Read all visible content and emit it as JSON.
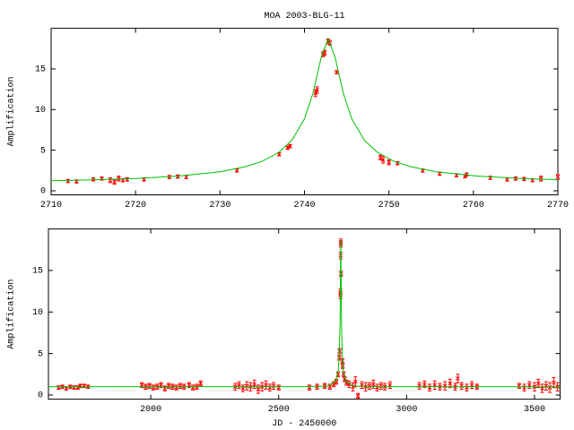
{
  "chart_data": [
    {
      "type": "scatter",
      "title": "MOA 2003-BLG-11",
      "y_label": "Amplification",
      "xlim": [
        2710,
        2770
      ],
      "ylim": [
        -0.5,
        20
      ],
      "xticks": [
        2710,
        2720,
        2730,
        2740,
        2750,
        2760,
        2770
      ],
      "yticks": [
        0,
        5,
        10,
        15
      ],
      "model": {
        "color": "#00c000",
        "x": [
          2710,
          2715,
          2720,
          2725,
          2730,
          2733,
          2735,
          2737,
          2738.5,
          2740,
          2741,
          2742,
          2742.8,
          2743.6,
          2744.6,
          2745.6,
          2747.1,
          2748.6,
          2750.6,
          2752.6,
          2755.6,
          2760.6,
          2765.6,
          2770
        ],
        "values": [
          1.24,
          1.35,
          1.51,
          1.8,
          2.34,
          2.96,
          3.63,
          4.75,
          6.21,
          8.86,
          11.99,
          16.52,
          18.71,
          16.52,
          11.99,
          8.86,
          6.21,
          4.75,
          3.63,
          2.96,
          2.34,
          1.8,
          1.51,
          1.36
        ]
      },
      "points": {
        "color": "#ff0000",
        "x": [
          2712,
          2713,
          2715,
          2716,
          2717,
          2717.5,
          2718,
          2718.5,
          2719,
          2721,
          2724,
          2725,
          2726,
          2732,
          2737,
          2738,
          2738.3,
          2741.3,
          2741.5,
          2742.2,
          2742.4,
          2742.8,
          2743,
          2743.8,
          2749,
          2749.3,
          2750,
          2751,
          2754,
          2756,
          2758,
          2759,
          2759.2,
          2762,
          2764,
          2765,
          2766,
          2767,
          2768,
          2770
        ],
        "values": [
          1.2,
          1.15,
          1.4,
          1.5,
          1.3,
          1.1,
          1.5,
          1.3,
          1.4,
          1.4,
          1.7,
          1.75,
          1.7,
          2.5,
          4.5,
          5.3,
          5.5,
          12.0,
          12.4,
          16.8,
          17.0,
          18.4,
          18.2,
          14.6,
          4.1,
          3.8,
          3.5,
          3.4,
          2.5,
          2.1,
          1.9,
          1.8,
          2.0,
          1.6,
          1.4,
          1.5,
          1.45,
          1.3,
          1.5,
          1.7
        ],
        "errors": [
          0.2,
          0.2,
          0.2,
          0.2,
          0.3,
          0.3,
          0.3,
          0.2,
          0.2,
          0.2,
          0.2,
          0.2,
          0.2,
          0.2,
          0.2,
          0.2,
          0.2,
          0.4,
          0.4,
          0.3,
          0.3,
          0.3,
          0.3,
          0.2,
          0.3,
          0.4,
          0.3,
          0.2,
          0.2,
          0.2,
          0.2,
          0.2,
          0.2,
          0.2,
          0.2,
          0.2,
          0.2,
          0.2,
          0.3,
          0.3
        ]
      }
    },
    {
      "type": "scatter",
      "y_label": "Amplification",
      "x_label": "JD - 2450000",
      "xlim": [
        1600,
        3600
      ],
      "ylim": [
        -0.5,
        20
      ],
      "xticks": [
        2000,
        2500,
        3000,
        3500
      ],
      "yticks": [
        0,
        5,
        10,
        15
      ],
      "model": {
        "color": "#00c000",
        "x": [
          1600,
          2600,
          2692.8,
          2722.8,
          2732.8,
          2737,
          2740,
          2741,
          2742,
          2742.8,
          2743.6,
          2744.6,
          2745.6,
          2748.6,
          2752.8,
          2762.8,
          2792.8,
          2900,
          3600
        ],
        "values": [
          1.0,
          1.01,
          1.08,
          1.65,
          2.9,
          4.75,
          8.86,
          11.99,
          16.52,
          18.71,
          16.52,
          11.99,
          8.86,
          4.75,
          2.9,
          1.65,
          1.08,
          1.01,
          1.0
        ]
      },
      "points": {
        "color": "#ff0000",
        "x": [
          1640,
          1655,
          1670,
          1685,
          1700,
          1715,
          1725,
          1740,
          1755,
          1965,
          1980,
          1995,
          2010,
          2025,
          2040,
          2055,
          2070,
          2085,
          2100,
          2115,
          2130,
          2150,
          2165,
          2180,
          2195,
          2330,
          2345,
          2360,
          2375,
          2390,
          2405,
          2420,
          2435,
          2450,
          2465,
          2480,
          2500,
          2620,
          2650,
          2680,
          2700,
          2715,
          2725,
          2732,
          2737,
          2738,
          2741.3,
          2741.5,
          2742.2,
          2742.8,
          2743,
          2743.8,
          2749,
          2750,
          2754,
          2758,
          2765,
          2775,
          2790,
          2800,
          2810,
          2825,
          2840,
          2855,
          2870,
          2885,
          2900,
          2915,
          2935,
          3050,
          3070,
          3090,
          3110,
          3130,
          3150,
          3170,
          3190,
          3200,
          3215,
          3235,
          3255,
          3275,
          3440,
          3460,
          3480,
          3500,
          3515,
          3530,
          3545,
          3560,
          3575,
          3590
        ],
        "values": [
          0.9,
          1.0,
          0.8,
          1.0,
          0.9,
          0.9,
          1.1,
          1.1,
          1.0,
          1.2,
          1.0,
          1.1,
          0.9,
          1.0,
          1.2,
          0.8,
          1.1,
          1.0,
          0.9,
          1.1,
          1.0,
          1.2,
          0.9,
          1.0,
          1.4,
          1.0,
          1.2,
          0.8,
          1.1,
          1.0,
          1.3,
          0.7,
          1.0,
          1.2,
          0.9,
          1.1,
          0.9,
          0.9,
          1.0,
          1.1,
          1.0,
          1.3,
          1.6,
          2.5,
          4.5,
          5.3,
          12.0,
          12.4,
          16.8,
          18.4,
          18.2,
          14.6,
          4.1,
          3.5,
          2.5,
          1.9,
          1.5,
          1.3,
          1.0,
          1.6,
          -0.1,
          1.2,
          1.0,
          1.1,
          1.3,
          0.9,
          1.1,
          1.0,
          1.2,
          1.1,
          1.3,
          0.9,
          1.2,
          1.0,
          1.1,
          1.4,
          1.0,
          2.0,
          1.1,
          0.9,
          1.2,
          1.0,
          1.1,
          0.9,
          1.2,
          1.0,
          1.4,
          0.8,
          1.1,
          0.9,
          1.5,
          1.0
        ],
        "errors": [
          0.2,
          0.2,
          0.2,
          0.2,
          0.2,
          0.2,
          0.2,
          0.2,
          0.2,
          0.3,
          0.3,
          0.3,
          0.3,
          0.3,
          0.3,
          0.3,
          0.3,
          0.3,
          0.3,
          0.3,
          0.3,
          0.3,
          0.3,
          0.3,
          0.3,
          0.4,
          0.4,
          0.4,
          0.5,
          0.5,
          0.5,
          0.5,
          0.5,
          0.5,
          0.4,
          0.4,
          0.3,
          0.3,
          0.3,
          0.3,
          0.3,
          0.3,
          0.3,
          0.3,
          0.3,
          0.3,
          0.4,
          0.4,
          0.4,
          0.4,
          0.4,
          0.3,
          0.3,
          0.3,
          0.3,
          0.3,
          0.3,
          0.4,
          0.5,
          0.6,
          0.3,
          0.4,
          0.5,
          0.4,
          0.5,
          0.4,
          0.4,
          0.4,
          0.4,
          0.4,
          0.4,
          0.4,
          0.5,
          0.4,
          0.5,
          0.5,
          0.4,
          0.5,
          0.4,
          0.4,
          0.4,
          0.3,
          0.3,
          0.4,
          0.4,
          0.5,
          0.5,
          0.5,
          0.5,
          0.6,
          0.6,
          0.5
        ]
      }
    }
  ]
}
